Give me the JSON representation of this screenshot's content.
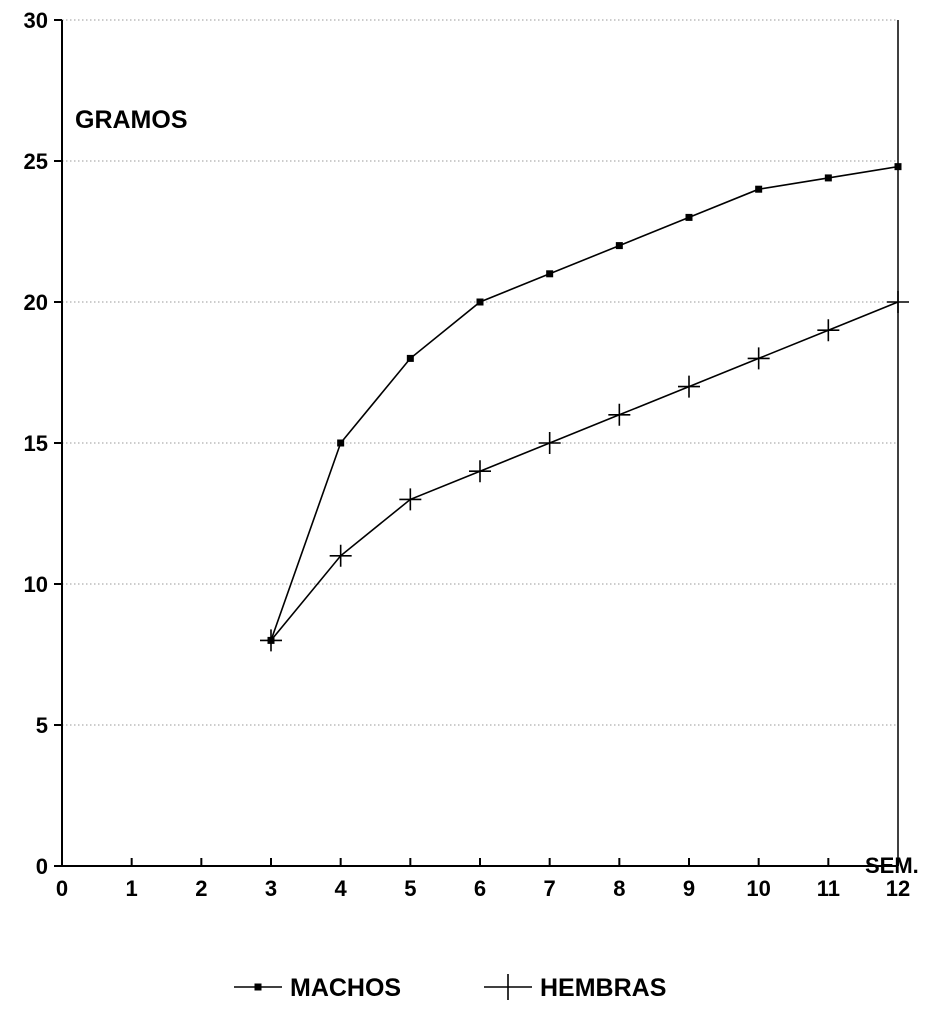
{
  "chart_data": {
    "type": "line",
    "title": "",
    "ylabel": "GRAMOS",
    "xlabel": "SEM.",
    "xlim": [
      0,
      12
    ],
    "ylim": [
      0,
      30
    ],
    "xticks": [
      0,
      1,
      2,
      3,
      4,
      5,
      6,
      7,
      8,
      9,
      10,
      11,
      12
    ],
    "yticks": [
      0,
      5,
      10,
      15,
      20,
      25,
      30
    ],
    "grid": "horizontal dotted",
    "legend_position": "bottom-center",
    "series": [
      {
        "name": "MACHOS",
        "marker": "square",
        "x": [
          3,
          4,
          5,
          6,
          7,
          8,
          9,
          10,
          11,
          12
        ],
        "y": [
          8,
          15,
          18,
          20,
          21,
          22,
          23,
          24,
          24.4,
          24.8
        ]
      },
      {
        "name": "HEMBRAS",
        "marker": "plus",
        "x": [
          3,
          4,
          5,
          6,
          7,
          8,
          9,
          10,
          11,
          12
        ],
        "y": [
          8,
          11,
          13,
          14,
          15,
          16,
          17,
          18,
          19,
          20
        ]
      }
    ],
    "colors": {
      "line": "#000000",
      "grid": "#999999",
      "axis": "#000000"
    }
  }
}
